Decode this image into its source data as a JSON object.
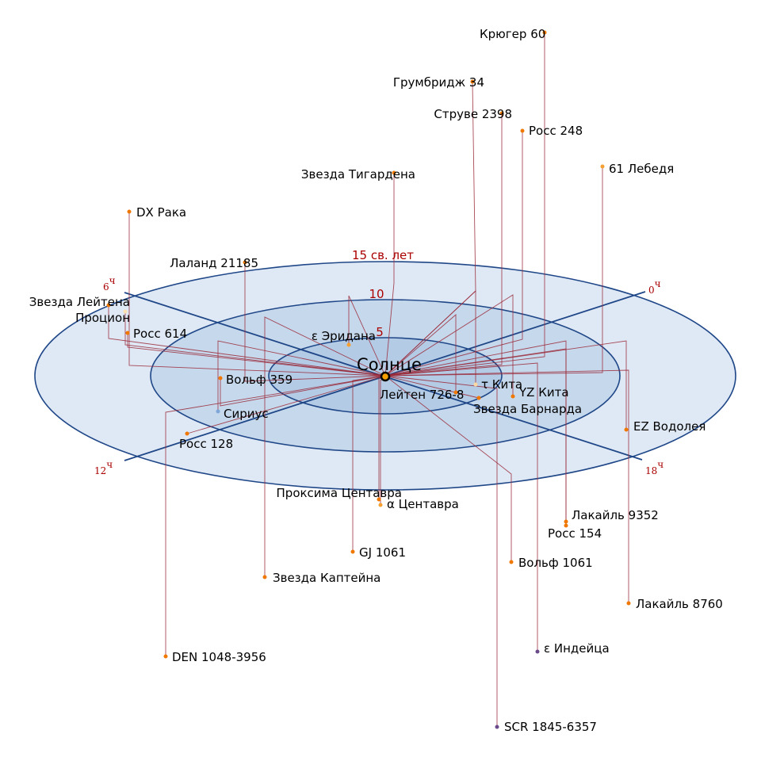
{
  "sun": {
    "label": "Солнце"
  },
  "distance_rings": [
    {
      "label": "15 св. лет",
      "ly": 15
    },
    {
      "label": "10",
      "ly": 10
    },
    {
      "label": "5",
      "ly": 5
    }
  ],
  "hours": [
    {
      "label": "0",
      "sup": "ч"
    },
    {
      "label": "6",
      "sup": "ч"
    },
    {
      "label": "12",
      "sup": "ч"
    },
    {
      "label": "18",
      "sup": "ч"
    }
  ],
  "colors": {
    "ring": "#1f4788",
    "fill_outer": "#dfe9f5",
    "fill_mid": "#c6d8eb",
    "fill_inner": "#b4cbe5",
    "projection": "#9a2a3a",
    "labels_accent": "#aa0000",
    "star_default": "#f07800"
  },
  "stars": [
    {
      "name": "Крюгер 60",
      "color": "#f07800"
    },
    {
      "name": "Грумбридж 34",
      "color": "#f07800"
    },
    {
      "name": "Струве 2398",
      "color": "#f07800"
    },
    {
      "name": "Росс 248",
      "color": "#f07800"
    },
    {
      "name": "61 Лебедя",
      "color": "#f5a030"
    },
    {
      "name": "Звезда Тигардена",
      "color": "#f07800"
    },
    {
      "name": "DX Рака",
      "color": "#f07800"
    },
    {
      "name": "Лаланд 21185",
      "color": "#f07800"
    },
    {
      "name": "Звезда Лейтена",
      "color": "#f07800"
    },
    {
      "name": "Процион",
      "color": "#fde0b0"
    },
    {
      "name": "Росс 614",
      "color": "#f07800"
    },
    {
      "name": "ε Эридана",
      "color": "#f5a030"
    },
    {
      "name": "Вольф 359",
      "color": "#f07800"
    },
    {
      "name": "Сириус",
      "color": "#7ea6d8"
    },
    {
      "name": "Росс 128",
      "color": "#f07800"
    },
    {
      "name": "Лейтен 726-8",
      "color": "#f07800"
    },
    {
      "name": "τ Кита",
      "color": "#fdd8a0"
    },
    {
      "name": "YZ Кита",
      "color": "#f07800"
    },
    {
      "name": "Звезда Барнарда",
      "color": "#f07800"
    },
    {
      "name": "EZ Водолея",
      "color": "#f07800"
    },
    {
      "name": "Проксима Центавра",
      "color": "#f07800"
    },
    {
      "name": "α Центавра",
      "color": "#f5a030"
    },
    {
      "name": "GJ 1061",
      "color": "#f07800"
    },
    {
      "name": "Звезда Каптейна",
      "color": "#f07800"
    },
    {
      "name": "Вольф 1061",
      "color": "#f07800"
    },
    {
      "name": "Лакайль 9352",
      "color": "#f07800"
    },
    {
      "name": "Росс 154",
      "color": "#f07800"
    },
    {
      "name": "Лакайль 8760",
      "color": "#f07800"
    },
    {
      "name": "ε Индейца",
      "color": "#6a4a8a"
    },
    {
      "name": "SCR 1845-6357",
      "color": "#6a4a8a"
    },
    {
      "name": "DEN 1048-3956",
      "color": "#f07800"
    }
  ]
}
